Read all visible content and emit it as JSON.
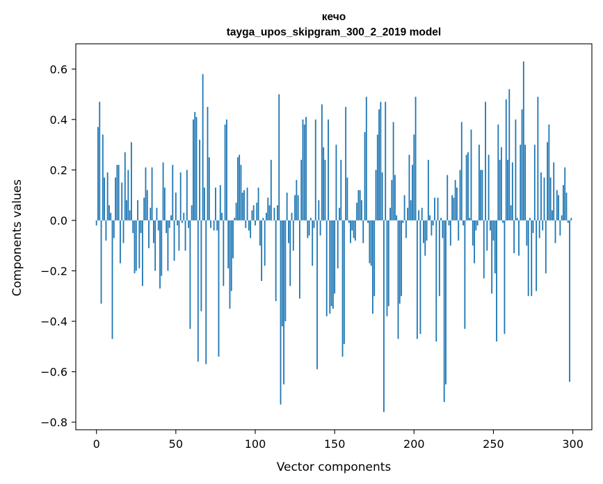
{
  "chart_data": {
    "type": "bar",
    "title": "кечо",
    "subtitle": "tayga_upos_skipgram_300_2_2019 model",
    "xlabel": "Vector components",
    "ylabel": "Components values",
    "xlim": [
      -13,
      312
    ],
    "ylim": [
      -0.83,
      0.7
    ],
    "xticks": [
      0,
      50,
      100,
      150,
      200,
      250,
      300
    ],
    "yticks": [
      -0.8,
      -0.6,
      -0.4,
      -0.2,
      0.0,
      0.2,
      0.4,
      0.6
    ],
    "ytick_labels": [
      "−0.8",
      "−0.6",
      "−0.4",
      "−0.2",
      "0.0",
      "0.2",
      "0.4",
      "0.6"
    ],
    "bar_color": "#1f77b4",
    "values": [
      -0.02,
      0.37,
      0.47,
      -0.33,
      0.34,
      0.17,
      -0.08,
      0.19,
      0.06,
      0.03,
      -0.47,
      -0.07,
      0.17,
      0.22,
      0.22,
      -0.17,
      0.15,
      -0.09,
      0.27,
      0.08,
      0.2,
      0.04,
      0.31,
      -0.05,
      -0.21,
      -0.2,
      0.08,
      -0.19,
      -0.05,
      -0.26,
      0.09,
      0.21,
      0.12,
      -0.11,
      0.05,
      0.21,
      -0.09,
      -0.2,
      0.05,
      -0.04,
      -0.27,
      -0.22,
      0.23,
      0.13,
      -0.05,
      -0.2,
      -0.03,
      0.02,
      0.22,
      -0.16,
      0.11,
      -0.02,
      -0.12,
      0.19,
      -0.01,
      0.03,
      -0.12,
      0.2,
      -0.03,
      -0.43,
      0.06,
      0.4,
      0.43,
      0.41,
      -0.56,
      0.32,
      -0.36,
      0.58,
      0.13,
      -0.57,
      0.45,
      0.25,
      -0.03,
      0.0,
      -0.04,
      0.13,
      -0.04,
      -0.54,
      0.14,
      0.03,
      -0.26,
      0.38,
      0.4,
      -0.19,
      -0.35,
      -0.28,
      -0.15,
      0.01,
      0.07,
      0.25,
      0.26,
      0.22,
      0.11,
      0.12,
      -0.03,
      0.13,
      -0.04,
      -0.07,
      0.04,
      0.06,
      -0.02,
      0.07,
      0.13,
      -0.1,
      -0.24,
      0.01,
      -0.18,
      0.03,
      0.09,
      0.06,
      0.24,
      0.0,
      0.05,
      -0.32,
      0.06,
      0.5,
      -0.73,
      -0.42,
      -0.65,
      -0.4,
      0.11,
      -0.09,
      -0.26,
      0.03,
      -0.12,
      0.1,
      0.16,
      0.1,
      -0.31,
      0.24,
      0.4,
      0.38,
      0.41,
      -0.07,
      -0.06,
      0.01,
      -0.18,
      -0.03,
      0.4,
      -0.59,
      0.08,
      -0.06,
      0.46,
      0.29,
      0.24,
      -0.38,
      0.4,
      -0.37,
      -0.34,
      -0.35,
      -0.29,
      0.3,
      -0.19,
      0.05,
      0.24,
      -0.54,
      -0.49,
      0.45,
      0.17,
      -0.01,
      -0.09,
      -0.04,
      -0.07,
      -0.08,
      0.07,
      0.12,
      0.12,
      0.08,
      -0.09,
      0.35,
      0.49,
      -0.01,
      -0.17,
      -0.18,
      -0.37,
      -0.3,
      0.2,
      0.34,
      0.44,
      0.47,
      0.19,
      -0.76,
      0.47,
      -0.38,
      -0.34,
      0.05,
      0.16,
      0.39,
      0.18,
      0.02,
      -0.47,
      -0.33,
      -0.3,
      -0.01,
      0.1,
      -0.07,
      0.05,
      0.26,
      0.08,
      0.22,
      0.34,
      0.49,
      -0.47,
      0.04,
      -0.45,
      0.05,
      -0.09,
      -0.14,
      -0.08,
      0.24,
      0.02,
      -0.06,
      -0.02,
      0.09,
      -0.48,
      0.09,
      -0.3,
      0.01,
      -0.07,
      -0.72,
      -0.65,
      0.18,
      -0.02,
      -0.1,
      0.1,
      0.09,
      0.16,
      0.13,
      -0.08,
      0.2,
      0.39,
      -0.02,
      -0.43,
      0.26,
      0.27,
      0.01,
      0.36,
      -0.1,
      -0.17,
      -0.04,
      -0.02,
      0.3,
      0.2,
      0.2,
      -0.23,
      0.47,
      -0.12,
      0.26,
      -0.04,
      -0.29,
      -0.08,
      -0.21,
      -0.48,
      0.38,
      0.24,
      0.29,
      -0.01,
      -0.45,
      0.48,
      0.24,
      0.52,
      0.06,
      0.23,
      -0.13,
      0.4,
      0.01,
      -0.14,
      0.3,
      0.44,
      0.63,
      0.3,
      -0.1,
      -0.3,
      0.01,
      -0.3,
      -0.05,
      0.3,
      -0.28,
      0.49,
      -0.07,
      0.19,
      -0.04,
      0.17,
      -0.21,
      0.31,
      0.38,
      0.17,
      0.04,
      0.23,
      -0.09,
      0.12,
      0.1,
      -0.06,
      0.02,
      0.14,
      0.21,
      0.11,
      -0.01,
      -0.64,
      0.01
    ]
  }
}
